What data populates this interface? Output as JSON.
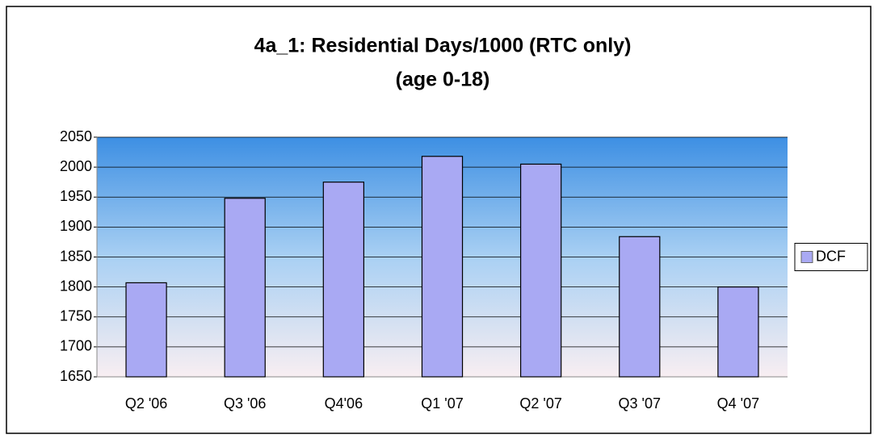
{
  "chart_data": {
    "type": "bar",
    "title": [
      "4a_1: Residential Days/1000 (RTC only)",
      "(age 0-18)"
    ],
    "categories": [
      "Q2 '06",
      "Q3 '06",
      "Q4'06",
      "Q1 '07",
      "Q2 '07",
      "Q3 '07",
      "Q4 '07"
    ],
    "series": [
      {
        "name": "DCF",
        "color": "#a9a9f3",
        "values": [
          1807,
          1948,
          1975,
          2018,
          2005,
          1884,
          1800
        ]
      }
    ],
    "ylim": [
      1650,
      2050
    ],
    "yticks": [
      1650,
      1700,
      1750,
      1800,
      1850,
      1900,
      1950,
      2000,
      2050
    ],
    "grid": true,
    "legend": "right"
  }
}
